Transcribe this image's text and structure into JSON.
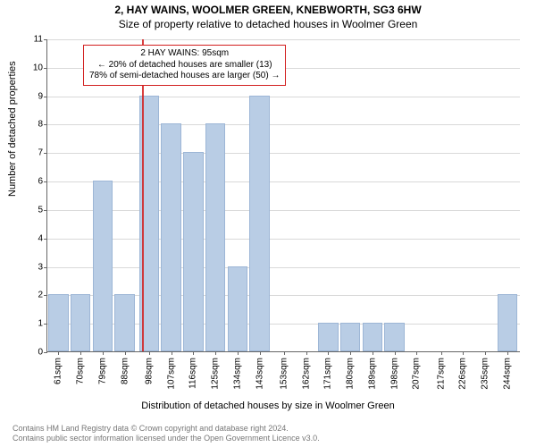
{
  "title": {
    "line1": "2, HAY WAINS, WOOLMER GREEN, KNEBWORTH, SG3 6HW",
    "line2": "Size of property relative to detached houses in Woolmer Green"
  },
  "ylabel": "Number of detached properties",
  "xlabel": "Distribution of detached houses by size in Woolmer Green",
  "footer": {
    "line1": "Contains HM Land Registry data © Crown copyright and database right 2024.",
    "line2": "Contains public sector information licensed under the Open Government Licence v3.0."
  },
  "chart": {
    "type": "histogram",
    "background_color": "#ffffff",
    "grid_color": "#d9d9d9",
    "axis_color": "#666666",
    "bar_fill": "#b9cde5",
    "bar_border": "#9db6d6",
    "ref_color": "#d21f1f",
    "ymin": 0,
    "ymax": 11,
    "ytick_step": 1,
    "xmin": 56.5,
    "xmax": 249.5,
    "xticks": [
      61,
      70,
      79,
      88,
      98,
      107,
      116,
      125,
      134,
      143,
      153,
      162,
      171,
      180,
      189,
      198,
      207,
      217,
      226,
      235,
      244
    ],
    "xtick_suffix": "sqm",
    "bar_width": 8.2,
    "ref_value": 95,
    "callout": {
      "line1": "2 HAY WAINS: 95sqm",
      "line2": "← 20% of detached houses are smaller (13)",
      "line3": "78% of semi-detached houses are larger (50) →"
    },
    "bars": [
      {
        "x": 61,
        "y": 2
      },
      {
        "x": 70,
        "y": 2
      },
      {
        "x": 79,
        "y": 6
      },
      {
        "x": 88,
        "y": 2
      },
      {
        "x": 98,
        "y": 9
      },
      {
        "x": 107,
        "y": 8
      },
      {
        "x": 116,
        "y": 7
      },
      {
        "x": 125,
        "y": 8
      },
      {
        "x": 134,
        "y": 3
      },
      {
        "x": 143,
        "y": 9
      },
      {
        "x": 153,
        "y": 0
      },
      {
        "x": 162,
        "y": 0
      },
      {
        "x": 171,
        "y": 1
      },
      {
        "x": 180,
        "y": 1
      },
      {
        "x": 189,
        "y": 1
      },
      {
        "x": 198,
        "y": 1
      },
      {
        "x": 207,
        "y": 0
      },
      {
        "x": 217,
        "y": 0
      },
      {
        "x": 226,
        "y": 0
      },
      {
        "x": 235,
        "y": 0
      },
      {
        "x": 244,
        "y": 2
      }
    ]
  }
}
